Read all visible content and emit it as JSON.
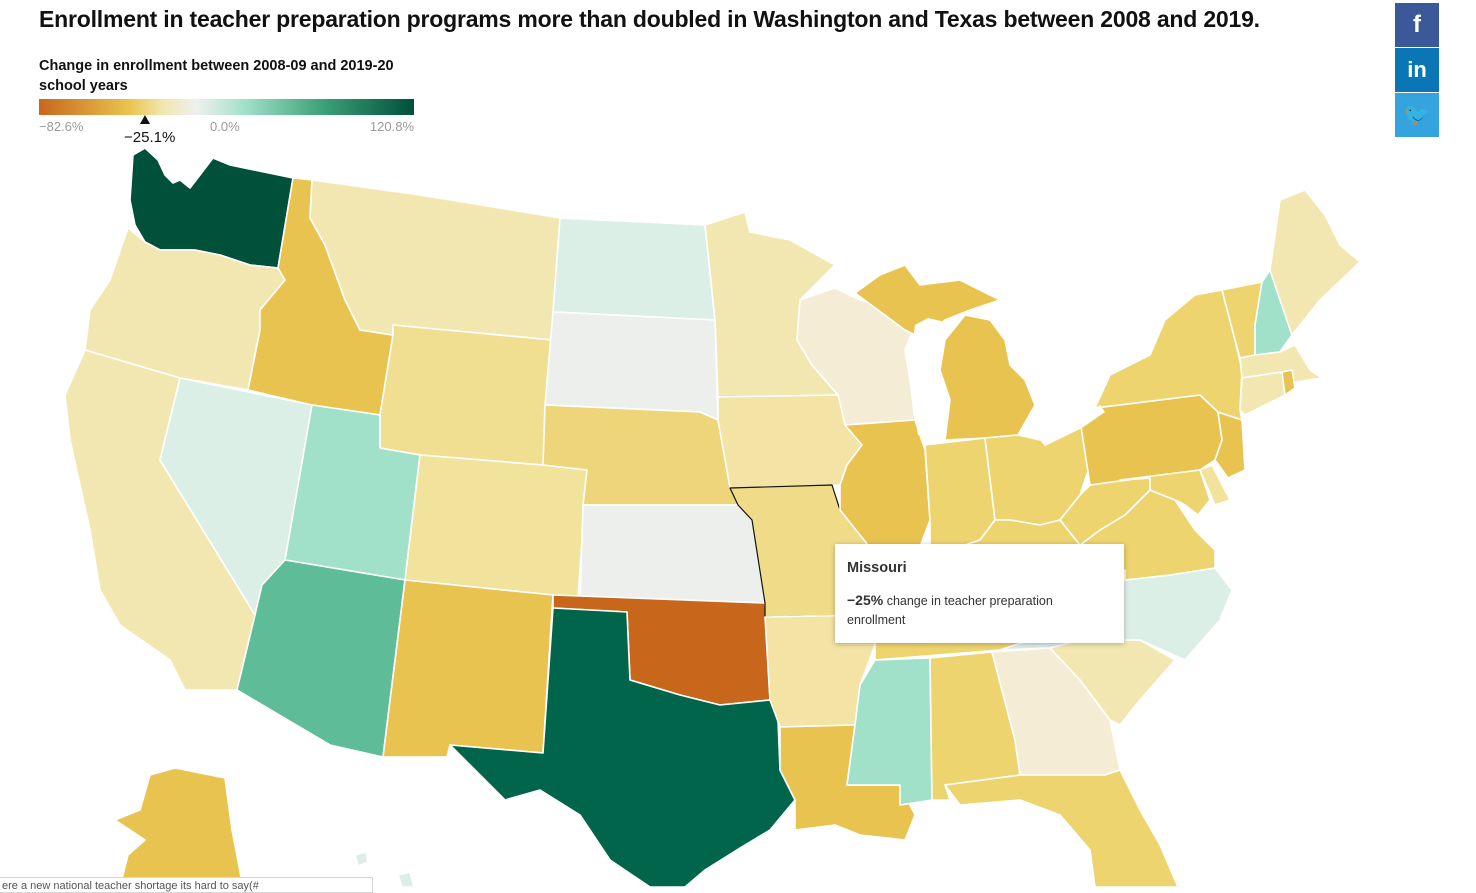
{
  "headline": "Enrollment in teacher preparation programs more than doubled in Washington and Texas between 2008 and 2019.",
  "legend": {
    "title": "Change in enrollment between 2008-09 and 2019-20 school years",
    "min_label": "−82.6%",
    "zero_label": "0.0%",
    "max_label": "120.8%",
    "marker_label": "−25.1%",
    "marker_value": -25.1,
    "colors": [
      "#c8671c",
      "#e9c34f",
      "#f2e6ae",
      "#eef0ee",
      "#a1e0c9",
      "#3fa37b",
      "#00503a"
    ]
  },
  "tooltip": {
    "state": "Missouri",
    "value": "−25%",
    "text": "change in teacher preparation enrollment"
  },
  "share": {
    "facebook_icon": "f",
    "linkedin_icon": "in",
    "twitter_icon": "🐦"
  },
  "caption_fragment": "ere a new national teacher shortage its hard to say(#",
  "chart_data": {
    "type": "choropleth",
    "title": "Enrollment in teacher preparation programs more than doubled in Washington and Texas between 2008 and 2019.",
    "legend_title": "Change in enrollment between 2008-09 and 2019-20 school years",
    "scale_range": [
      -82.6,
      120.8
    ],
    "highlighted_state": "Missouri",
    "highlighted_value": -25.1,
    "states": [
      {
        "name": "Washington",
        "color": "#00503a"
      },
      {
        "name": "Oregon",
        "color": "#f3e7b1"
      },
      {
        "name": "California",
        "color": "#f3e7b1"
      },
      {
        "name": "Idaho",
        "color": "#e9c34f"
      },
      {
        "name": "Nevada",
        "color": "#dcefe7"
      },
      {
        "name": "Montana",
        "color": "#f3e7b1"
      },
      {
        "name": "Wyoming",
        "color": "#f0df90"
      },
      {
        "name": "Utah",
        "color": "#a1e0c9"
      },
      {
        "name": "Arizona",
        "color": "#5ebc98"
      },
      {
        "name": "Colorado",
        "color": "#f2e39c"
      },
      {
        "name": "New Mexico",
        "color": "#e9c34f"
      },
      {
        "name": "North Dakota",
        "color": "#dcefe7"
      },
      {
        "name": "South Dakota",
        "color": "#edefed"
      },
      {
        "name": "Nebraska",
        "color": "#eed57a"
      },
      {
        "name": "Kansas",
        "color": "#edefed"
      },
      {
        "name": "Oklahoma",
        "color": "#c8671c"
      },
      {
        "name": "Texas",
        "color": "#00654a"
      },
      {
        "name": "Minnesota",
        "color": "#f3e7b1"
      },
      {
        "name": "Iowa",
        "color": "#f3e3a4"
      },
      {
        "name": "Missouri",
        "color": "#f0dc88"
      },
      {
        "name": "Arkansas",
        "color": "#f3e3a4"
      },
      {
        "name": "Louisiana",
        "color": "#e9c34f"
      },
      {
        "name": "Wisconsin",
        "color": "#f5ecd6"
      },
      {
        "name": "Illinois",
        "color": "#e9c34f"
      },
      {
        "name": "Michigan",
        "color": "#e9c34f"
      },
      {
        "name": "Indiana",
        "color": "#eed46e"
      },
      {
        "name": "Ohio",
        "color": "#eed46e"
      },
      {
        "name": "Kentucky",
        "color": "#eed46e"
      },
      {
        "name": "Tennessee",
        "color": "#eed46e"
      },
      {
        "name": "Mississippi",
        "color": "#a1e0c9"
      },
      {
        "name": "Alabama",
        "color": "#eed46e"
      },
      {
        "name": "Georgia",
        "color": "#f5ecd6"
      },
      {
        "name": "Florida",
        "color": "#eed46e"
      },
      {
        "name": "South Carolina",
        "color": "#f3e7b1"
      },
      {
        "name": "North Carolina",
        "color": "#dcefe7"
      },
      {
        "name": "Virginia",
        "color": "#eed46e"
      },
      {
        "name": "West Virginia",
        "color": "#eed46e"
      },
      {
        "name": "Pennsylvania",
        "color": "#e9c34f"
      },
      {
        "name": "New York",
        "color": "#eed46e"
      },
      {
        "name": "New Jersey",
        "color": "#e9c34f"
      },
      {
        "name": "Maryland",
        "color": "#eed46e"
      },
      {
        "name": "Delaware",
        "color": "#f2e39c"
      },
      {
        "name": "Vermont",
        "color": "#eed46e"
      },
      {
        "name": "New Hampshire",
        "color": "#a1e0c9"
      },
      {
        "name": "Maine",
        "color": "#f3e7b1"
      },
      {
        "name": "Massachusetts",
        "color": "#f3e7b1"
      },
      {
        "name": "Connecticut",
        "color": "#f3e7b1"
      },
      {
        "name": "Rhode Island",
        "color": "#e9c34f"
      },
      {
        "name": "Alaska",
        "color": "#e9c34f"
      }
    ]
  }
}
